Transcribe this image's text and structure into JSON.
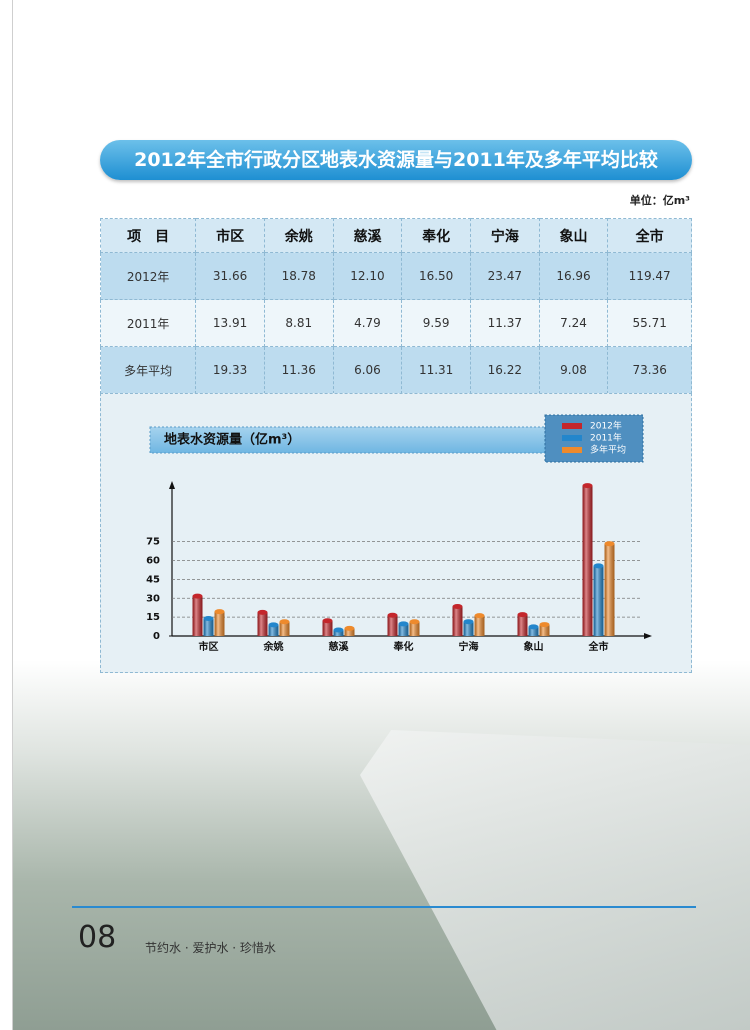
{
  "title": "2012年全市行政分区地表水资源量与2011年及多年平均比较",
  "unit": "单位：亿m³",
  "table": {
    "header": [
      "项　目",
      "市区",
      "余姚",
      "慈溪",
      "奉化",
      "宁海",
      "象山",
      "全市"
    ],
    "rows": [
      [
        "2012年",
        "31.66",
        "18.78",
        "12.10",
        "16.50",
        "23.47",
        "16.96",
        "119.47"
      ],
      [
        "2011年",
        "13.91",
        "8.81",
        "4.79",
        "9.59",
        "11.37",
        "7.24",
        "55.71"
      ],
      [
        "多年平均",
        "19.33",
        "11.36",
        "6.06",
        "11.31",
        "16.22",
        "9.08",
        "73.36"
      ]
    ]
  },
  "chart_data": {
    "type": "bar",
    "title": "地表水资源量（亿m³）",
    "categories": [
      "市区",
      "余姚",
      "慈溪",
      "奉化",
      "宁海",
      "象山",
      "全市"
    ],
    "series": [
      {
        "name": "2012年",
        "color": "#c4262b",
        "values": [
          31.66,
          18.78,
          12.1,
          16.5,
          23.47,
          16.96,
          119.47
        ]
      },
      {
        "name": "2011年",
        "color": "#2386cc",
        "values": [
          13.91,
          8.81,
          4.79,
          9.59,
          11.37,
          7.24,
          55.71
        ]
      },
      {
        "name": "多年平均",
        "color": "#ee8a2c",
        "values": [
          19.33,
          11.36,
          6.06,
          11.31,
          16.22,
          9.08,
          73.36
        ]
      }
    ],
    "ylim": [
      0,
      120
    ],
    "yticks": [
      0,
      15,
      30,
      45,
      60,
      75
    ],
    "grid": true
  },
  "footer": {
    "page": "08",
    "slogan": "节约水 · 爱护水 · 珍惜水"
  }
}
